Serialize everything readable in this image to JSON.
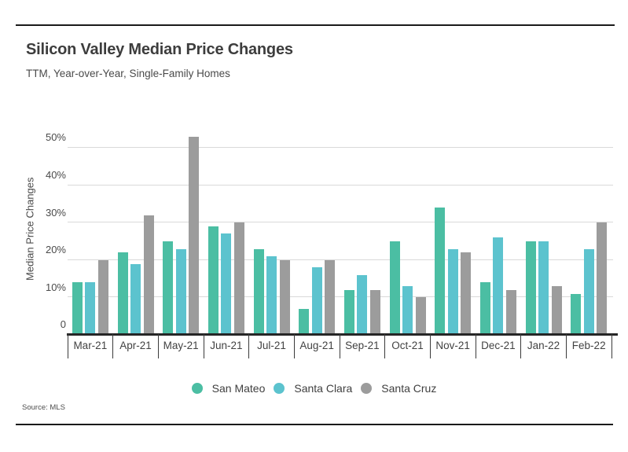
{
  "header": {
    "title": "Silicon Valley Median Price Changes",
    "subtitle": "TTM, Year-over-Year, Single-Family Homes"
  },
  "source_note": "Source:  MLS",
  "chart_data": {
    "type": "bar",
    "title": "Silicon Valley Median Price Changes",
    "subtitle": "TTM, Year-over-Year, Single-Family Homes",
    "ylabel": "Median Price Changes",
    "categories": [
      "Mar-21",
      "Apr-21",
      "May-21",
      "Jun-21",
      "Jul-21",
      "Aug-21",
      "Sep-21",
      "Oct-21",
      "Nov-21",
      "Dec-21",
      "Jan-22",
      "Feb-22"
    ],
    "series": [
      {
        "name": "San Mateo",
        "color": "#4bbea3",
        "values": [
          14,
          22,
          25,
          29,
          23,
          7,
          12,
          25,
          34,
          14,
          25,
          11
        ]
      },
      {
        "name": "Santa Clara",
        "color": "#5cc3ce",
        "values": [
          14,
          19,
          23,
          27,
          21,
          18,
          16,
          13,
          23,
          26,
          25,
          23
        ]
      },
      {
        "name": "Santa Cruz",
        "color": "#9c9c9c",
        "values": [
          20,
          32,
          53,
          30,
          20,
          20,
          12,
          10,
          22,
          12,
          13,
          30
        ]
      }
    ],
    "yticks": [
      0,
      10,
      20,
      30,
      40,
      50
    ],
    "ytick_labels": [
      "0",
      "10%",
      "20%",
      "30%",
      "40%",
      "50%"
    ],
    "ylim": [
      0,
      56.5
    ],
    "grid": true,
    "legend_position": "bottom",
    "colors": {
      "gridline": "#d9d9d9",
      "axis": "#262626",
      "rule": "#1a1a1a"
    }
  }
}
